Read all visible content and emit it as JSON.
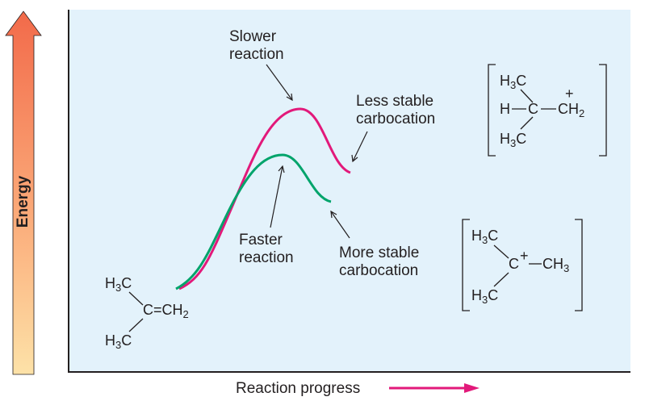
{
  "axes": {
    "y_label": "Energy",
    "x_label": "Reaction progress"
  },
  "labels": {
    "slower_line1": "Slower",
    "slower_line2": "reaction",
    "faster_line1": "Faster",
    "faster_line2": "reaction",
    "less_stable_line1": "Less stable",
    "less_stable_line2": "carbocation",
    "more_stable_line1": "More stable",
    "more_stable_line2": "carbocation"
  },
  "structures": {
    "alkene": {
      "top_group": "H3C",
      "bottom_group": "H3C",
      "center": "C",
      "double_bond": "=",
      "right_group": "CH2"
    },
    "primary_cation": {
      "top_group": "H3C",
      "bottom_group": "H3C",
      "left_atom": "H",
      "center": "C",
      "right_group": "CH2",
      "charge": "+"
    },
    "tertiary_cation": {
      "top_group": "H3C",
      "bottom_group": "H3C",
      "center": "C",
      "right_group": "CH3",
      "charge": "+"
    }
  },
  "colors": {
    "slower_curve": "#e2197a",
    "faster_curve": "#00a46b",
    "plot_background": "#e3f2fb",
    "progress_arrow": "#e2197a",
    "energy_arrow_top": "#f26a4a",
    "energy_arrow_bottom": "#fde2a8"
  }
}
